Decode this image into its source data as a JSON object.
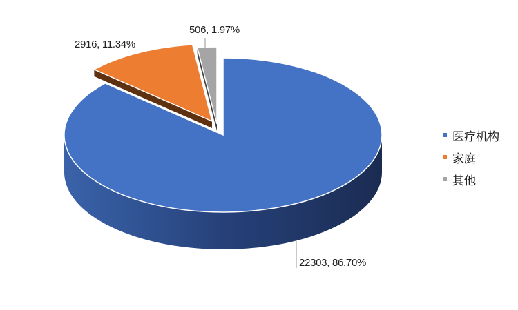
{
  "chart_data": {
    "type": "pie",
    "style": "3d-exploded",
    "legend_position": "right",
    "slices": [
      {
        "name": "医疗机构",
        "value": 22303,
        "percent": 86.7,
        "label": "22303, 86.70%",
        "color": "#4472C4"
      },
      {
        "name": "家庭",
        "value": 2916,
        "percent": 11.34,
        "label": "2916, 11.34%",
        "color": "#ED7D31"
      },
      {
        "name": "其他",
        "value": 506,
        "percent": 1.97,
        "label": "506, 1.97%",
        "color": "#A5A5A5"
      }
    ]
  }
}
